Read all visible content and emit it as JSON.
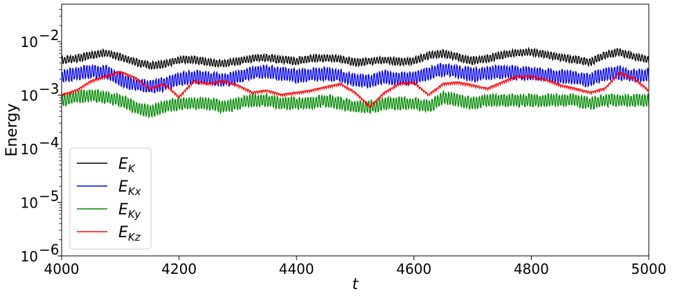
{
  "chart_data": {
    "type": "line",
    "xlabel": "t",
    "ylabel": "Energy",
    "xlim": [
      4000,
      5000
    ],
    "ylim": [
      1e-06,
      0.05
    ],
    "yscale": "log",
    "grid": false,
    "legend_placement": "lower-left",
    "x_ticks": [
      {
        "value": 4000,
        "label": "4000"
      },
      {
        "value": 4200,
        "label": "4200"
      },
      {
        "value": 4400,
        "label": "4400"
      },
      {
        "value": 4600,
        "label": "4600"
      },
      {
        "value": 4800,
        "label": "4800"
      },
      {
        "value": 5000,
        "label": "5000"
      }
    ],
    "y_ticks": [
      {
        "value": 1e-06,
        "base": "10",
        "exp": "−6"
      },
      {
        "value": 1e-05,
        "base": "10",
        "exp": "−5"
      },
      {
        "value": 0.0001,
        "base": "10",
        "exp": "−4"
      },
      {
        "value": 0.001,
        "base": "10",
        "exp": "−3"
      },
      {
        "value": 0.01,
        "base": "10",
        "exp": "−2"
      }
    ],
    "x": [
      4000,
      4025,
      4050,
      4075,
      4100,
      4125,
      4150,
      4175,
      4200,
      4225,
      4250,
      4275,
      4300,
      4325,
      4350,
      4375,
      4400,
      4425,
      4450,
      4475,
      4500,
      4525,
      4550,
      4575,
      4600,
      4625,
      4650,
      4675,
      4700,
      4725,
      4750,
      4775,
      4800,
      4825,
      4850,
      4875,
      4900,
      4925,
      4950,
      4975,
      5000
    ],
    "series": [
      {
        "name": "E",
        "sub": "K",
        "color": "#000000",
        "values": [
          0.0045,
          0.0048,
          0.0055,
          0.0062,
          0.0052,
          0.0042,
          0.0036,
          0.0038,
          0.0045,
          0.0046,
          0.0041,
          0.0039,
          0.0043,
          0.0048,
          0.005,
          0.0046,
          0.0043,
          0.0048,
          0.005,
          0.0047,
          0.0041,
          0.0043,
          0.0046,
          0.0042,
          0.0044,
          0.0055,
          0.006,
          0.0051,
          0.0044,
          0.0048,
          0.0056,
          0.0062,
          0.0064,
          0.0057,
          0.005,
          0.0046,
          0.0041,
          0.0056,
          0.0064,
          0.0052,
          0.0046
        ],
        "amplitude": 0.3,
        "period": 3
      },
      {
        "name": "E",
        "sub": "Kx",
        "color": "#0000ee",
        "values": [
          0.0022,
          0.0025,
          0.0028,
          0.0027,
          0.002,
          0.0016,
          0.0014,
          0.0016,
          0.002,
          0.0022,
          0.0021,
          0.0019,
          0.0022,
          0.0026,
          0.0028,
          0.0025,
          0.0023,
          0.0024,
          0.0025,
          0.0023,
          0.0019,
          0.0018,
          0.0022,
          0.002,
          0.0021,
          0.0026,
          0.003,
          0.0027,
          0.0024,
          0.0026,
          0.0027,
          0.0026,
          0.0025,
          0.0024,
          0.0022,
          0.0021,
          0.0019,
          0.0025,
          0.0026,
          0.0023,
          0.0024
        ],
        "amplitude": 0.55,
        "period": 3
      },
      {
        "name": "E",
        "sub": "Ky",
        "color": "#008800",
        "values": [
          0.0008,
          0.0009,
          0.001,
          0.0009,
          0.0008,
          0.0006,
          0.0005,
          0.0006,
          0.0007,
          0.0007,
          0.0007,
          0.0006,
          0.0007,
          0.0008,
          0.0008,
          0.0007,
          0.0007,
          0.0007,
          0.0008,
          0.0007,
          0.0006,
          0.0006,
          0.0007,
          0.0007,
          0.0007,
          0.0006,
          0.0009,
          0.0008,
          0.0007,
          0.0008,
          0.0008,
          0.0008,
          0.0008,
          0.0008,
          0.0008,
          0.0008,
          0.0007,
          0.0008,
          0.0008,
          0.0008,
          0.0008
        ],
        "amplitude": 0.5,
        "period": 3
      },
      {
        "name": "E",
        "sub": "Kz",
        "color": "#ff0000",
        "values": [
          0.001,
          0.0012,
          0.0018,
          0.0022,
          0.0027,
          0.0021,
          0.0013,
          0.0016,
          0.0009,
          0.0018,
          0.0016,
          0.0018,
          0.0015,
          0.0011,
          0.0012,
          0.001,
          0.0011,
          0.0012,
          0.0014,
          0.0016,
          0.0011,
          0.0006,
          0.0011,
          0.0016,
          0.0017,
          0.001,
          0.0016,
          0.0017,
          0.0015,
          0.0013,
          0.0017,
          0.0022,
          0.0022,
          0.0019,
          0.0015,
          0.0013,
          0.0011,
          0.0013,
          0.0026,
          0.002,
          0.0012
        ],
        "amplitude": 0.1,
        "period": 2
      }
    ]
  }
}
